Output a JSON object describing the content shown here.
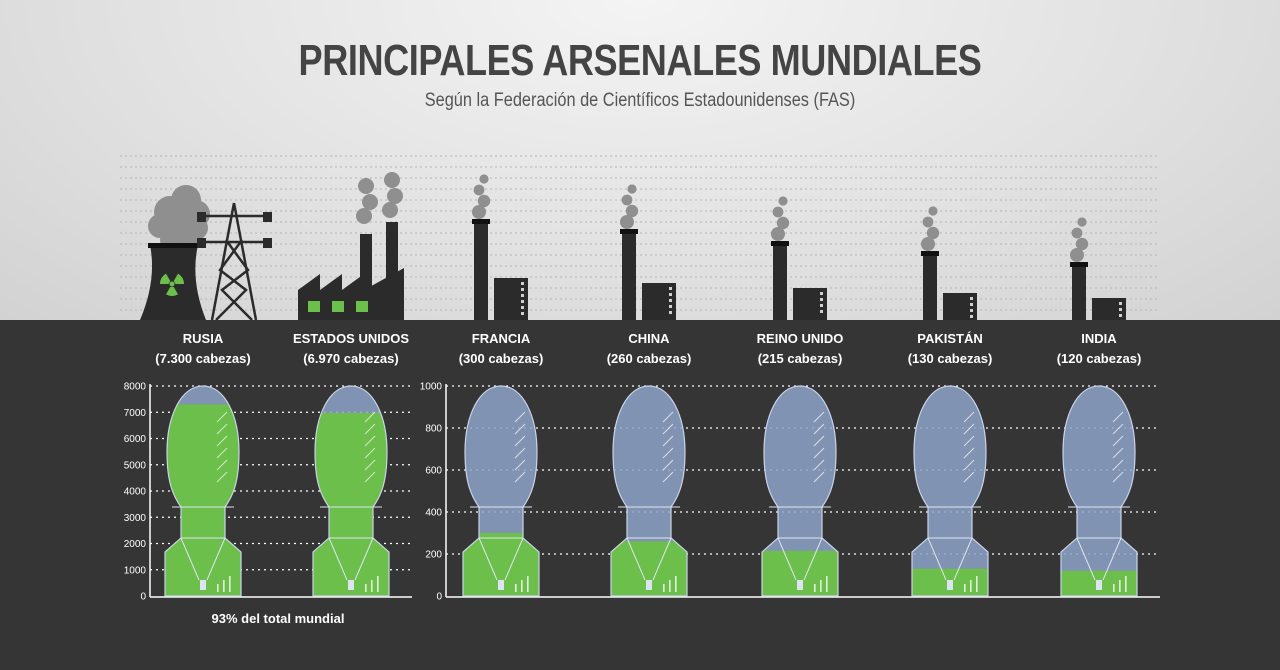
{
  "title": "PRINCIPALES ARSENALES MUNDIALES",
  "subtitle": "Según la Federación de Científicos Estadounidenses (FAS)",
  "colors": {
    "top_background": "#dcdcdc",
    "bottom_background": "#353535",
    "bomb_shell": "#8ea3c8",
    "bomb_fill": "#6cbf4b",
    "silhouette": "#2b2b2b",
    "radiation": "#6cbf4b"
  },
  "icons": {
    "russia": "nuclear-plant-with-power-tower-icon",
    "usa": "factory-with-chimneys-icon",
    "others": "smoking-chimney-icon"
  },
  "chart_data": [
    {
      "type": "bar",
      "style": "bomb-shaped pictogram fill",
      "categories": [
        "RUSIA",
        "ESTADOS UNIDOS"
      ],
      "labels": [
        "(7.300 cabezas)",
        "(6.970 cabezas)"
      ],
      "values": [
        7300,
        6970
      ],
      "ylim": [
        0,
        8000
      ],
      "yticks": [
        0,
        1000,
        2000,
        3000,
        4000,
        5000,
        6000,
        7000,
        8000
      ],
      "grid": true,
      "annotation": "93% del total mundial"
    },
    {
      "type": "bar",
      "style": "bomb-shaped pictogram fill",
      "categories": [
        "FRANCIA",
        "CHINA",
        "REINO UNIDO",
        "PAKISTÁN",
        "INDIA"
      ],
      "labels": [
        "(300 cabezas)",
        "(260 cabezas)",
        "(215 cabezas)",
        "(130 cabezas)",
        "(120 cabezas)"
      ],
      "values": [
        300,
        260,
        215,
        130,
        120
      ],
      "ylim": [
        0,
        1000
      ],
      "yticks": [
        0,
        200,
        400,
        600,
        800,
        1000
      ],
      "grid": true
    }
  ]
}
